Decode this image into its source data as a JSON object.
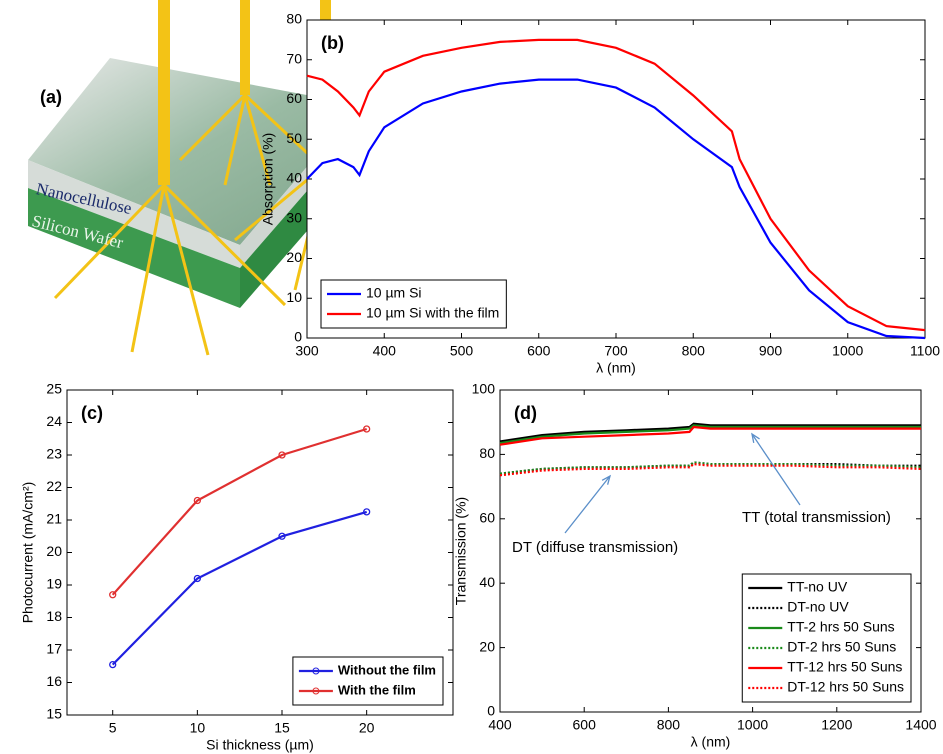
{
  "panel_a": {
    "label": "(a)",
    "layers": [
      "Nanocellulose",
      "Silicon Wafer"
    ]
  },
  "chart_data": [
    {
      "type": "line",
      "panel_label": "(b)",
      "xlabel": "λ (nm)",
      "ylabel": "Absorption (%)",
      "x": [
        300,
        320,
        340,
        360,
        368,
        380,
        400,
        450,
        500,
        550,
        600,
        650,
        700,
        750,
        800,
        850,
        860,
        900,
        950,
        1000,
        1050,
        1100
      ],
      "series": [
        {
          "name": "10 µm Si",
          "color": "#0000ff",
          "linestyle": "solid",
          "values": [
            40,
            44,
            45,
            43,
            41,
            47,
            53,
            59,
            62,
            64,
            65,
            65,
            63,
            58,
            50,
            43,
            38,
            24,
            12,
            4,
            0.5,
            0
          ]
        },
        {
          "name": "10 µm Si with the film",
          "color": "#ff0000",
          "linestyle": "solid",
          "values": [
            66,
            65,
            62,
            58,
            56,
            62,
            67,
            71,
            73,
            74.5,
            75,
            75,
            73,
            69,
            61,
            52,
            45,
            30,
            17,
            8,
            3,
            2
          ]
        }
      ],
      "xlim": [
        300,
        1100
      ],
      "xticks": [
        300,
        400,
        500,
        600,
        700,
        800,
        900,
        1000,
        1100
      ],
      "ylim": [
        0,
        80
      ],
      "yticks": [
        0,
        10,
        20,
        30,
        40,
        50,
        60,
        70,
        80
      ],
      "legend": "lower left",
      "markers": false
    },
    {
      "type": "line",
      "panel_label": "(c)",
      "xlabel": "Si thickness (µm)",
      "ylabel": "Photocurrent (mA/cm²)",
      "x": [
        5,
        10,
        15,
        20
      ],
      "series": [
        {
          "name": "Without the film",
          "color": "#2020e0",
          "linestyle": "solid",
          "values": [
            16.55,
            19.2,
            20.5,
            21.25
          ]
        },
        {
          "name": "With the film",
          "color": "#e03030",
          "linestyle": "solid",
          "values": [
            18.7,
            21.6,
            23.0,
            23.8
          ]
        }
      ],
      "xlim": [
        2.3,
        25.1
      ],
      "xticks": [
        5,
        10,
        15,
        20
      ],
      "ylim": [
        15,
        25
      ],
      "yticks": [
        15,
        16,
        17,
        18,
        19,
        20,
        21,
        22,
        23,
        24,
        25
      ],
      "legend": "lower right",
      "markers": true
    },
    {
      "type": "line",
      "panel_label": "(d)",
      "xlabel": "λ (nm)",
      "ylabel": "Transmission (%)",
      "x": [
        400,
        500,
        600,
        700,
        800,
        850,
        860,
        900,
        1000,
        1100,
        1200,
        1300,
        1400
      ],
      "series": [
        {
          "name": "TT-no UV",
          "color": "#000000",
          "linestyle": "solid",
          "values": [
            84,
            86,
            87,
            87.5,
            88,
            88.5,
            89.5,
            89,
            89,
            89,
            89,
            89,
            89
          ]
        },
        {
          "name": "DT-no UV",
          "color": "#000000",
          "linestyle": "dotted",
          "values": [
            74,
            75.5,
            76,
            76,
            76.5,
            76.5,
            77.5,
            77,
            77,
            77,
            77,
            76.5,
            76.5
          ]
        },
        {
          "name": "TT-2 hrs 50 Suns",
          "color": "#1a8a1a",
          "linestyle": "solid",
          "values": [
            83.5,
            85.5,
            86.5,
            87,
            87.5,
            88,
            89,
            88.5,
            88.5,
            88.5,
            88.5,
            88.5,
            88.5
          ]
        },
        {
          "name": "DT-2 hrs 50 Suns",
          "color": "#1a8a1a",
          "linestyle": "dotted",
          "values": [
            74,
            75.5,
            76,
            76,
            76.5,
            76.5,
            77.5,
            77,
            77,
            77,
            76.5,
            76.5,
            76
          ]
        },
        {
          "name": "TT-12 hrs 50 Suns",
          "color": "#ff0000",
          "linestyle": "solid",
          "values": [
            83,
            85,
            85.5,
            86,
            86.5,
            87,
            88.5,
            88,
            88,
            88,
            88,
            88,
            88
          ]
        },
        {
          "name": "DT-12 hrs 50 Suns",
          "color": "#ff0000",
          "linestyle": "dotted",
          "values": [
            73.5,
            75,
            75.5,
            75.5,
            76,
            76,
            77,
            76.5,
            76.5,
            76.5,
            76,
            76,
            75.5
          ]
        }
      ],
      "xlim": [
        400,
        1400
      ],
      "xticks": [
        400,
        600,
        800,
        1000,
        1200,
        1400
      ],
      "ylim": [
        0,
        100
      ],
      "yticks": [
        0,
        20,
        40,
        60,
        80,
        100
      ],
      "legend": "lower right",
      "markers": false,
      "annotations": [
        "TT (total transmission)",
        "DT (diffuse transmission)"
      ]
    }
  ]
}
